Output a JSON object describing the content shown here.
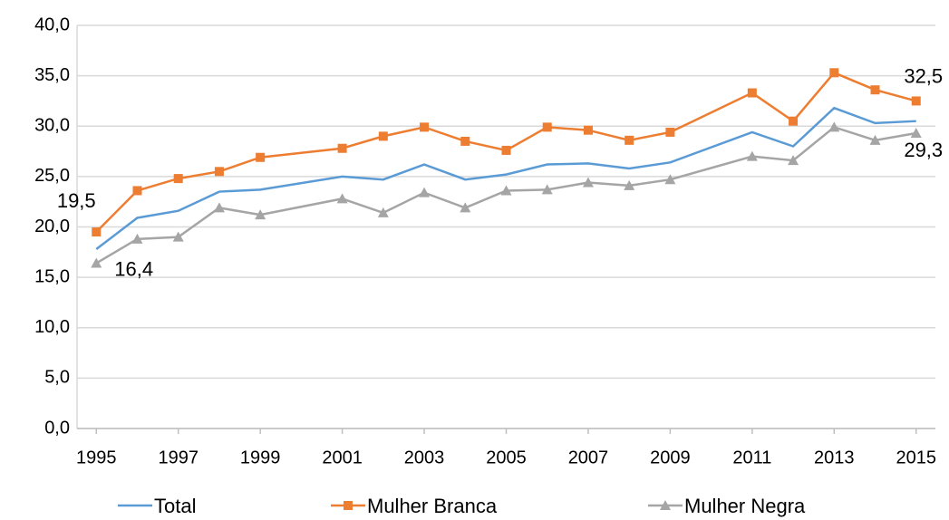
{
  "chart_data": {
    "type": "line",
    "x": [
      1995,
      1996,
      1997,
      1998,
      1999,
      2001,
      2002,
      2003,
      2004,
      2005,
      2006,
      2007,
      2008,
      2009,
      2011,
      2012,
      2013,
      2014,
      2015
    ],
    "series": [
      {
        "name": "Total",
        "color": "#5b9bd5",
        "marker": "none",
        "values": [
          17.8,
          20.9,
          21.6,
          23.5,
          23.7,
          25.0,
          24.7,
          26.2,
          24.7,
          25.2,
          26.2,
          26.3,
          25.8,
          26.4,
          29.4,
          28.0,
          31.8,
          30.3,
          30.5
        ]
      },
      {
        "name": "Mulher Branca",
        "color": "#ed7d31",
        "marker": "square",
        "values": [
          19.5,
          23.6,
          24.8,
          25.5,
          26.9,
          27.8,
          29.0,
          29.9,
          28.5,
          27.6,
          29.9,
          29.6,
          28.6,
          29.4,
          33.3,
          30.5,
          35.3,
          33.6,
          32.5
        ],
        "value_labels": [
          "19,5",
          null,
          null,
          null,
          null,
          null,
          null,
          null,
          null,
          null,
          null,
          null,
          null,
          null,
          null,
          null,
          null,
          null,
          "32,5"
        ]
      },
      {
        "name": "Mulher Negra",
        "color": "#a5a5a5",
        "marker": "triangle",
        "values": [
          16.4,
          18.8,
          19.0,
          21.9,
          21.2,
          22.8,
          21.4,
          23.4,
          21.9,
          23.6,
          23.7,
          24.4,
          24.1,
          24.7,
          27.0,
          26.6,
          29.9,
          28.6,
          29.3
        ],
        "value_labels": [
          "16,4",
          null,
          null,
          null,
          null,
          null,
          null,
          null,
          null,
          null,
          null,
          null,
          null,
          null,
          null,
          null,
          null,
          null,
          "29,3"
        ]
      }
    ],
    "xlim": [
      1994.53,
      2015.47
    ],
    "xticks": [
      1995,
      1997,
      1999,
      2001,
      2003,
      2005,
      2007,
      2009,
      2011,
      2013,
      2015
    ],
    "ylim": [
      0,
      40
    ],
    "yticks": [
      {
        "value": 0,
        "label": "0,0"
      },
      {
        "value": 5,
        "label": "5,0"
      },
      {
        "value": 10,
        "label": "10,0"
      },
      {
        "value": 15,
        "label": "15,0"
      },
      {
        "value": 20,
        "label": "20,0"
      },
      {
        "value": 25,
        "label": "25,0"
      },
      {
        "value": 30,
        "label": "30,0"
      },
      {
        "value": 35,
        "label": "35,0"
      },
      {
        "value": 40,
        "label": "40,0"
      }
    ],
    "grid": true,
    "legend": "bottom"
  }
}
